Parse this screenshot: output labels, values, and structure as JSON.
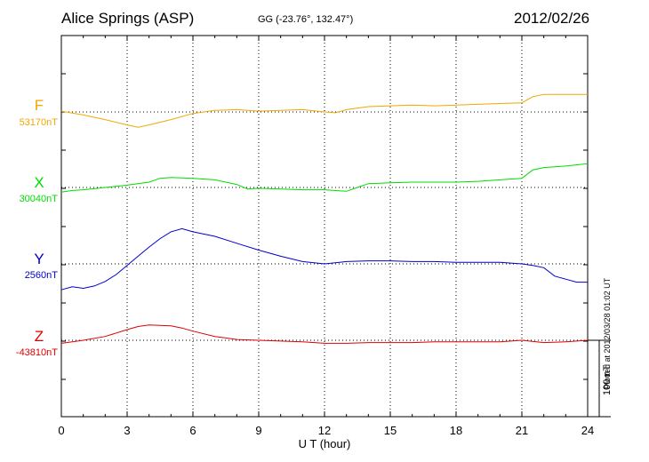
{
  "header": {
    "title": "Alice Springs (ASP)",
    "coords": "GG (-23.76°, 132.47°)",
    "date": "2012/02/26"
  },
  "footer": {
    "plotted": "Plotted at 2012/03/28 01:02 UT"
  },
  "scale": {
    "label": "100 nT",
    "value_nT": 100
  },
  "chart_data": {
    "type": "line",
    "title": "Alice Springs (ASP)",
    "xlabel": "U T (hour)",
    "xlim": [
      0,
      24
    ],
    "xticks": [
      0,
      3,
      6,
      9,
      12,
      15,
      18,
      21,
      24
    ],
    "xtick_labels": [
      "0",
      "3",
      "6",
      "9",
      "12",
      "15",
      "18",
      "21",
      "24"
    ],
    "grid": true,
    "scale_bar_nT": 100,
    "series": [
      {
        "name": "F",
        "baseline_label": "53170nT",
        "baseline_nT": 53170,
        "color": "#f0a800",
        "x": [
          0,
          1,
          2,
          3,
          3.5,
          4,
          5,
          6,
          7,
          8,
          9,
          10,
          11,
          12,
          12.5,
          13,
          14,
          15,
          16,
          17,
          18,
          19,
          20,
          21,
          21.5,
          22,
          23,
          24
        ],
        "y": [
          53171,
          53166,
          53160,
          53153,
          53150,
          53153,
          53160,
          53168,
          53172,
          53173,
          53171,
          53172,
          53173,
          53170,
          53169,
          53173,
          53177,
          53178,
          53179,
          53178,
          53179,
          53180,
          53181,
          53182,
          53190,
          53193,
          53193,
          53193
        ]
      },
      {
        "name": "X",
        "baseline_label": "30040nT",
        "baseline_nT": 30040,
        "color": "#00dd00",
        "x": [
          0,
          0.5,
          1,
          2,
          3,
          4,
          4.5,
          5,
          6,
          7,
          8,
          8.5,
          9,
          10,
          11,
          12,
          13,
          13.5,
          14,
          15,
          16,
          17,
          18,
          19,
          20,
          21,
          21.5,
          22,
          23,
          24
        ],
        "y": [
          30034,
          30036,
          30037,
          30040,
          30043,
          30047,
          30052,
          30053,
          30052,
          30050,
          30044,
          30038,
          30039,
          30038,
          30037,
          30037,
          30035,
          30040,
          30045,
          30046,
          30047,
          30047,
          30047,
          30048,
          30050,
          30052,
          30063,
          30066,
          30068,
          30071
        ]
      },
      {
        "name": "Y",
        "baseline_label": "2560nT",
        "baseline_nT": 2560,
        "color": "#0000cc",
        "x": [
          0,
          0.5,
          1,
          1.5,
          2,
          2.5,
          3,
          3.5,
          4,
          4.5,
          5,
          5.5,
          6,
          7,
          8,
          9,
          10,
          11,
          12,
          13,
          14,
          15,
          16,
          17,
          18,
          19,
          20,
          21,
          21.5,
          22,
          22.5,
          23,
          23.5,
          24
        ],
        "y": [
          2526,
          2530,
          2528,
          2531,
          2537,
          2546,
          2558,
          2570,
          2582,
          2593,
          2602,
          2606,
          2602,
          2596,
          2587,
          2578,
          2570,
          2563,
          2560,
          2563,
          2564,
          2564,
          2563,
          2563,
          2562,
          2562,
          2562,
          2560,
          2558,
          2555,
          2544,
          2540,
          2536,
          2536
        ]
      },
      {
        "name": "Z",
        "baseline_label": "-43810nT",
        "baseline_nT": -43810,
        "color": "#dd0000",
        "x": [
          0,
          0.5,
          1,
          2,
          3,
          3.5,
          4,
          5,
          5.5,
          6,
          7,
          8,
          9,
          10,
          11,
          12,
          13,
          14,
          15,
          16,
          17,
          18,
          19,
          20,
          21,
          22,
          23,
          24
        ],
        "y": [
          -43814,
          -43812,
          -43810,
          -43805,
          -43796,
          -43792,
          -43790,
          -43791,
          -43794,
          -43798,
          -43805,
          -43809,
          -43810,
          -43811,
          -43812,
          -43814,
          -43814,
          -43813,
          -43813,
          -43813,
          -43812,
          -43812,
          -43812,
          -43812,
          -43810,
          -43813,
          -43812,
          -43810
        ]
      }
    ]
  }
}
